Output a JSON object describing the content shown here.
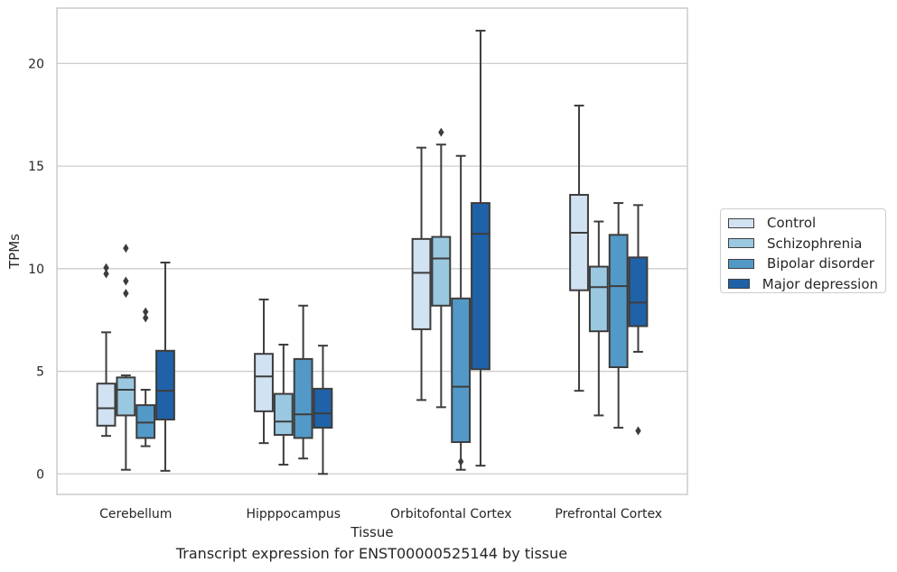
{
  "caption": "Transcript expression for ENST00000525144 by tissue",
  "chart_data": {
    "type": "box",
    "xlabel": "Tissue",
    "ylabel": "TPMs",
    "ylim": [
      -1,
      22.7
    ],
    "yticks": [
      0,
      5,
      10,
      15,
      20
    ],
    "grid": "horizontal",
    "legend_position": "right",
    "categories": [
      "Cerebellum",
      "Hipppocampus",
      "Orbitofontal Cortex",
      "Prefrontal Cortex"
    ],
    "series": [
      {
        "name": "Control",
        "color": "#d1e2f2",
        "boxes": [
          {
            "whislo": 1.85,
            "q1": 2.35,
            "med": 3.2,
            "q3": 4.4,
            "whishi": 6.9,
            "fliers": [
              9.75,
              10.05
            ]
          },
          {
            "whislo": 1.5,
            "q1": 3.05,
            "med": 4.75,
            "q3": 5.85,
            "whishi": 8.5,
            "fliers": []
          },
          {
            "whislo": 3.6,
            "q1": 7.05,
            "med": 9.8,
            "q3": 11.45,
            "whishi": 15.9,
            "fliers": []
          },
          {
            "whislo": 4.05,
            "q1": 8.95,
            "med": 11.75,
            "q3": 13.6,
            "whishi": 17.95,
            "fliers": []
          }
        ]
      },
      {
        "name": "Schizophrenia",
        "color": "#9ac8e0",
        "boxes": [
          {
            "whislo": 0.2,
            "q1": 2.85,
            "med": 4.1,
            "q3": 4.7,
            "whishi": 4.8,
            "fliers": [
              8.8,
              9.4,
              11.0
            ]
          },
          {
            "whislo": 0.45,
            "q1": 1.9,
            "med": 2.55,
            "q3": 3.9,
            "whishi": 6.3,
            "fliers": []
          },
          {
            "whislo": 3.25,
            "q1": 8.2,
            "med": 10.5,
            "q3": 11.55,
            "whishi": 16.05,
            "fliers": [
              16.65
            ]
          },
          {
            "whislo": 2.85,
            "q1": 6.95,
            "med": 9.1,
            "q3": 10.1,
            "whishi": 12.3,
            "fliers": []
          }
        ]
      },
      {
        "name": "Bipolar disorder",
        "color": "#5399c7",
        "boxes": [
          {
            "whislo": 1.35,
            "q1": 1.75,
            "med": 2.5,
            "q3": 3.35,
            "whishi": 4.1,
            "fliers": [
              7.6,
              7.9
            ]
          },
          {
            "whislo": 0.75,
            "q1": 1.75,
            "med": 2.9,
            "q3": 5.6,
            "whishi": 8.2,
            "fliers": []
          },
          {
            "whislo": 0.2,
            "q1": 1.55,
            "med": 4.25,
            "q3": 8.55,
            "whishi": 15.5,
            "fliers": [
              0.6
            ]
          },
          {
            "whislo": 2.25,
            "q1": 5.2,
            "med": 9.15,
            "q3": 11.65,
            "whishi": 13.2,
            "fliers": []
          }
        ]
      },
      {
        "name": "Major depression",
        "color": "#1f62a8",
        "boxes": [
          {
            "whislo": 0.15,
            "q1": 2.65,
            "med": 4.05,
            "q3": 6.0,
            "whishi": 10.3,
            "fliers": []
          },
          {
            "whislo": 0.0,
            "q1": 2.25,
            "med": 2.95,
            "q3": 4.15,
            "whishi": 6.25,
            "fliers": []
          },
          {
            "whislo": 0.4,
            "q1": 5.1,
            "med": 11.7,
            "q3": 13.2,
            "whishi": 21.6,
            "fliers": []
          },
          {
            "whislo": 5.95,
            "q1": 7.2,
            "med": 8.35,
            "q3": 10.55,
            "whishi": 13.1,
            "fliers": [
              2.1
            ]
          }
        ]
      }
    ]
  }
}
